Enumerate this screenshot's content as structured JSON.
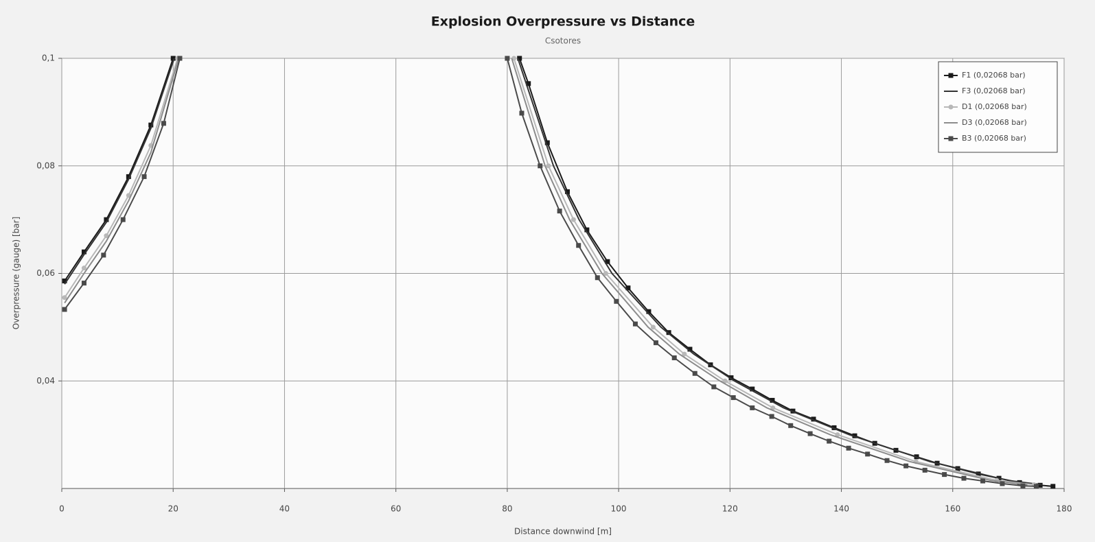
{
  "chart_data": {
    "type": "line",
    "title": "Explosion Overpressure vs Distance",
    "subtitle": "Csotores",
    "x_label": "Distance downwind [m]",
    "y_label": "Overpressure (gauge) [bar]",
    "xlim": [
      0,
      180
    ],
    "ylim": [
      0.02,
      0.1
    ],
    "xticks": [
      0,
      20,
      40,
      60,
      80,
      100,
      120,
      140,
      160,
      180
    ],
    "yticks": [
      {
        "value": 0.04,
        "label": "0,04"
      },
      {
        "value": 0.06,
        "label": "0,06"
      },
      {
        "value": 0.08,
        "label": "0,08"
      },
      {
        "value": 0.1,
        "label": "0,1"
      }
    ],
    "grid": true,
    "legend": "upper right",
    "series": [
      {
        "name": "F1 (0,02068 bar)",
        "color": "#1a1a1a",
        "marker": "square",
        "x": [
          0.5,
          4,
          8,
          12,
          16,
          20,
          null,
          82.2,
          83.8,
          87.2,
          90.8,
          94.3,
          98,
          101.7,
          105.4,
          109,
          112.8,
          116.5,
          120.2,
          124,
          127.6,
          131.3,
          135,
          138.7,
          142.4,
          146,
          149.8,
          153.5,
          157.2,
          160.9,
          164.6,
          168.3,
          172,
          175.7,
          178
        ],
        "values": [
          0.0586,
          0.064,
          0.07,
          0.078,
          0.0876,
          0.1,
          null,
          0.1,
          0.0953,
          0.0843,
          0.0752,
          0.0681,
          0.0622,
          0.0573,
          0.0529,
          0.049,
          0.0459,
          0.043,
          0.0406,
          0.0385,
          0.0364,
          0.0344,
          0.0329,
          0.0313,
          0.0298,
          0.0284,
          0.0271,
          0.0259,
          0.0247,
          0.0237,
          0.0227,
          0.0219,
          0.0211,
          0.0206,
          0.0204
        ]
      },
      {
        "name": "F3 (0,02068 bar)",
        "color": "#333333",
        "marker": "none",
        "x": [
          0.5,
          4,
          8,
          12,
          16,
          20.2,
          null,
          81.9,
          88.3,
          92.9,
          98.8,
          107.6,
          113.5,
          120.8,
          129.6,
          141.4,
          155.9,
          169.9,
          176
        ],
        "values": [
          0.058,
          0.0635,
          0.0695,
          0.0775,
          0.087,
          0.1,
          null,
          0.1,
          0.08,
          0.07,
          0.06,
          0.05,
          0.045,
          0.04,
          0.035,
          0.03,
          0.025,
          0.0215,
          0.0207
        ]
      },
      {
        "name": "D1 (0,02068 bar)",
        "color": "#b8b8b8",
        "marker": "circle",
        "x": [
          0.5,
          4,
          8,
          12,
          16,
          20.8,
          null,
          81.2,
          87.4,
          91.9,
          97.7,
          106.2,
          111.8,
          119.1,
          127.7,
          139.3,
          153.4,
          167.9,
          174.6
        ],
        "values": [
          0.0555,
          0.061,
          0.067,
          0.0745,
          0.0838,
          0.1,
          null,
          0.1,
          0.08,
          0.07,
          0.06,
          0.05,
          0.045,
          0.04,
          0.035,
          0.03,
          0.025,
          0.0215,
          0.0207
        ]
      },
      {
        "name": "D3 (0,02068 bar)",
        "color": "#8c8c8c",
        "marker": "none",
        "x": [
          0.5,
          4,
          8,
          12,
          16,
          21,
          null,
          80.8,
          86.8,
          91.2,
          97,
          105.3,
          110.9,
          118.2,
          126.6,
          138,
          152.3,
          166.8,
          173.4
        ],
        "values": [
          0.0545,
          0.06,
          0.066,
          0.0735,
          0.0825,
          0.1,
          null,
          0.1,
          0.08,
          0.07,
          0.06,
          0.05,
          0.045,
          0.04,
          0.035,
          0.03,
          0.025,
          0.0215,
          0.0207
        ]
      },
      {
        "name": "B3 (0,02068 bar)",
        "color": "#4a4a4a",
        "marker": "square",
        "x": [
          0.5,
          4,
          7.5,
          11,
          14.8,
          18.3,
          21.2,
          null,
          80,
          82.6,
          85.9,
          89.4,
          92.8,
          96.2,
          99.6,
          103,
          106.7,
          110,
          113.7,
          117.1,
          120.6,
          124,
          127.5,
          130.9,
          134.4,
          137.8,
          141.3,
          144.7,
          148.2,
          151.6,
          155,
          158.5,
          162,
          165.4,
          168.9,
          172.6,
          175
        ],
        "values": [
          0.0533,
          0.0582,
          0.0634,
          0.07,
          0.078,
          0.0879,
          0.1,
          null,
          0.1,
          0.0898,
          0.08,
          0.0716,
          0.0652,
          0.0592,
          0.0548,
          0.0506,
          0.0471,
          0.0443,
          0.0414,
          0.0389,
          0.0369,
          0.035,
          0.0334,
          0.0317,
          0.0302,
          0.0288,
          0.0275,
          0.0264,
          0.0252,
          0.0242,
          0.0234,
          0.0226,
          0.0219,
          0.0214,
          0.0209,
          0.0205,
          0.0204
        ]
      }
    ]
  }
}
